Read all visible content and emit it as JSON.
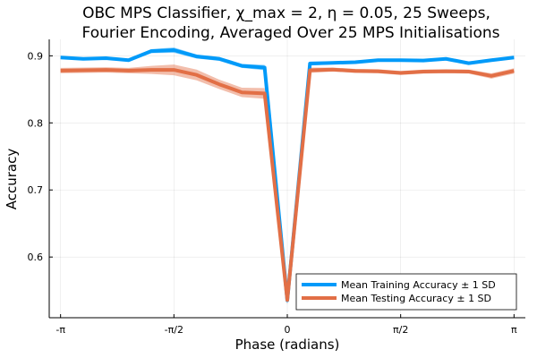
{
  "chart_data": {
    "type": "line",
    "title_line1": "OBC MPS Classifier, χ_max = 2, η = 0.05, 25 Sweeps,",
    "title_line2": "Fourier Encoding, Averaged Over 25 MPS Initialisations",
    "xlabel": "Phase (radians)",
    "ylabel": "Accuracy",
    "xticks": [
      "-π",
      "-π/2",
      "0",
      "π/2",
      "π"
    ],
    "yticks": [
      "0.6",
      "0.7",
      "0.8",
      "0.9"
    ],
    "xlim": [
      -3.2987,
      3.2987
    ],
    "ylim": [
      0.5095,
      0.9245
    ],
    "grid": true,
    "legend_position": "bottom-right",
    "x": [
      -3.1416,
      -2.8274,
      -2.5133,
      -2.1991,
      -1.885,
      -1.5708,
      -1.2566,
      -0.9425,
      -0.6283,
      -0.3142,
      0.0,
      0.3142,
      0.6283,
      0.9425,
      1.2566,
      1.5708,
      1.885,
      2.1991,
      2.5133,
      2.8274,
      3.1416
    ],
    "series": [
      {
        "name": "Mean Training Accuracy ± 1 SD",
        "color": "#009AF9",
        "values": [
          0.8975,
          0.8955,
          0.8965,
          0.8935,
          0.907,
          0.9085,
          0.899,
          0.8955,
          0.885,
          0.8825,
          0.5355,
          0.8885,
          0.8895,
          0.8905,
          0.8935,
          0.8935,
          0.893,
          0.8955,
          0.889,
          0.8935,
          0.8975
        ],
        "sd": [
          0.002,
          0.002,
          0.002,
          0.002,
          0.003,
          0.004,
          0.003,
          0.003,
          0.003,
          0.004,
          0.006,
          0.003,
          0.002,
          0.002,
          0.002,
          0.002,
          0.002,
          0.002,
          0.002,
          0.002,
          0.002
        ]
      },
      {
        "name": "Mean Testing Accuracy ± 1 SD",
        "color": "#E26F46",
        "values": [
          0.878,
          0.8785,
          0.879,
          0.878,
          0.879,
          0.879,
          0.8715,
          0.8575,
          0.8455,
          0.844,
          0.536,
          0.8785,
          0.8795,
          0.8775,
          0.877,
          0.8745,
          0.8765,
          0.877,
          0.8765,
          0.87,
          0.8775
        ],
        "sd": [
          0.004,
          0.004,
          0.004,
          0.004,
          0.006,
          0.008,
          0.008,
          0.007,
          0.007,
          0.008,
          0.007,
          0.004,
          0.003,
          0.003,
          0.003,
          0.003,
          0.003,
          0.003,
          0.003,
          0.004,
          0.004
        ]
      }
    ]
  }
}
